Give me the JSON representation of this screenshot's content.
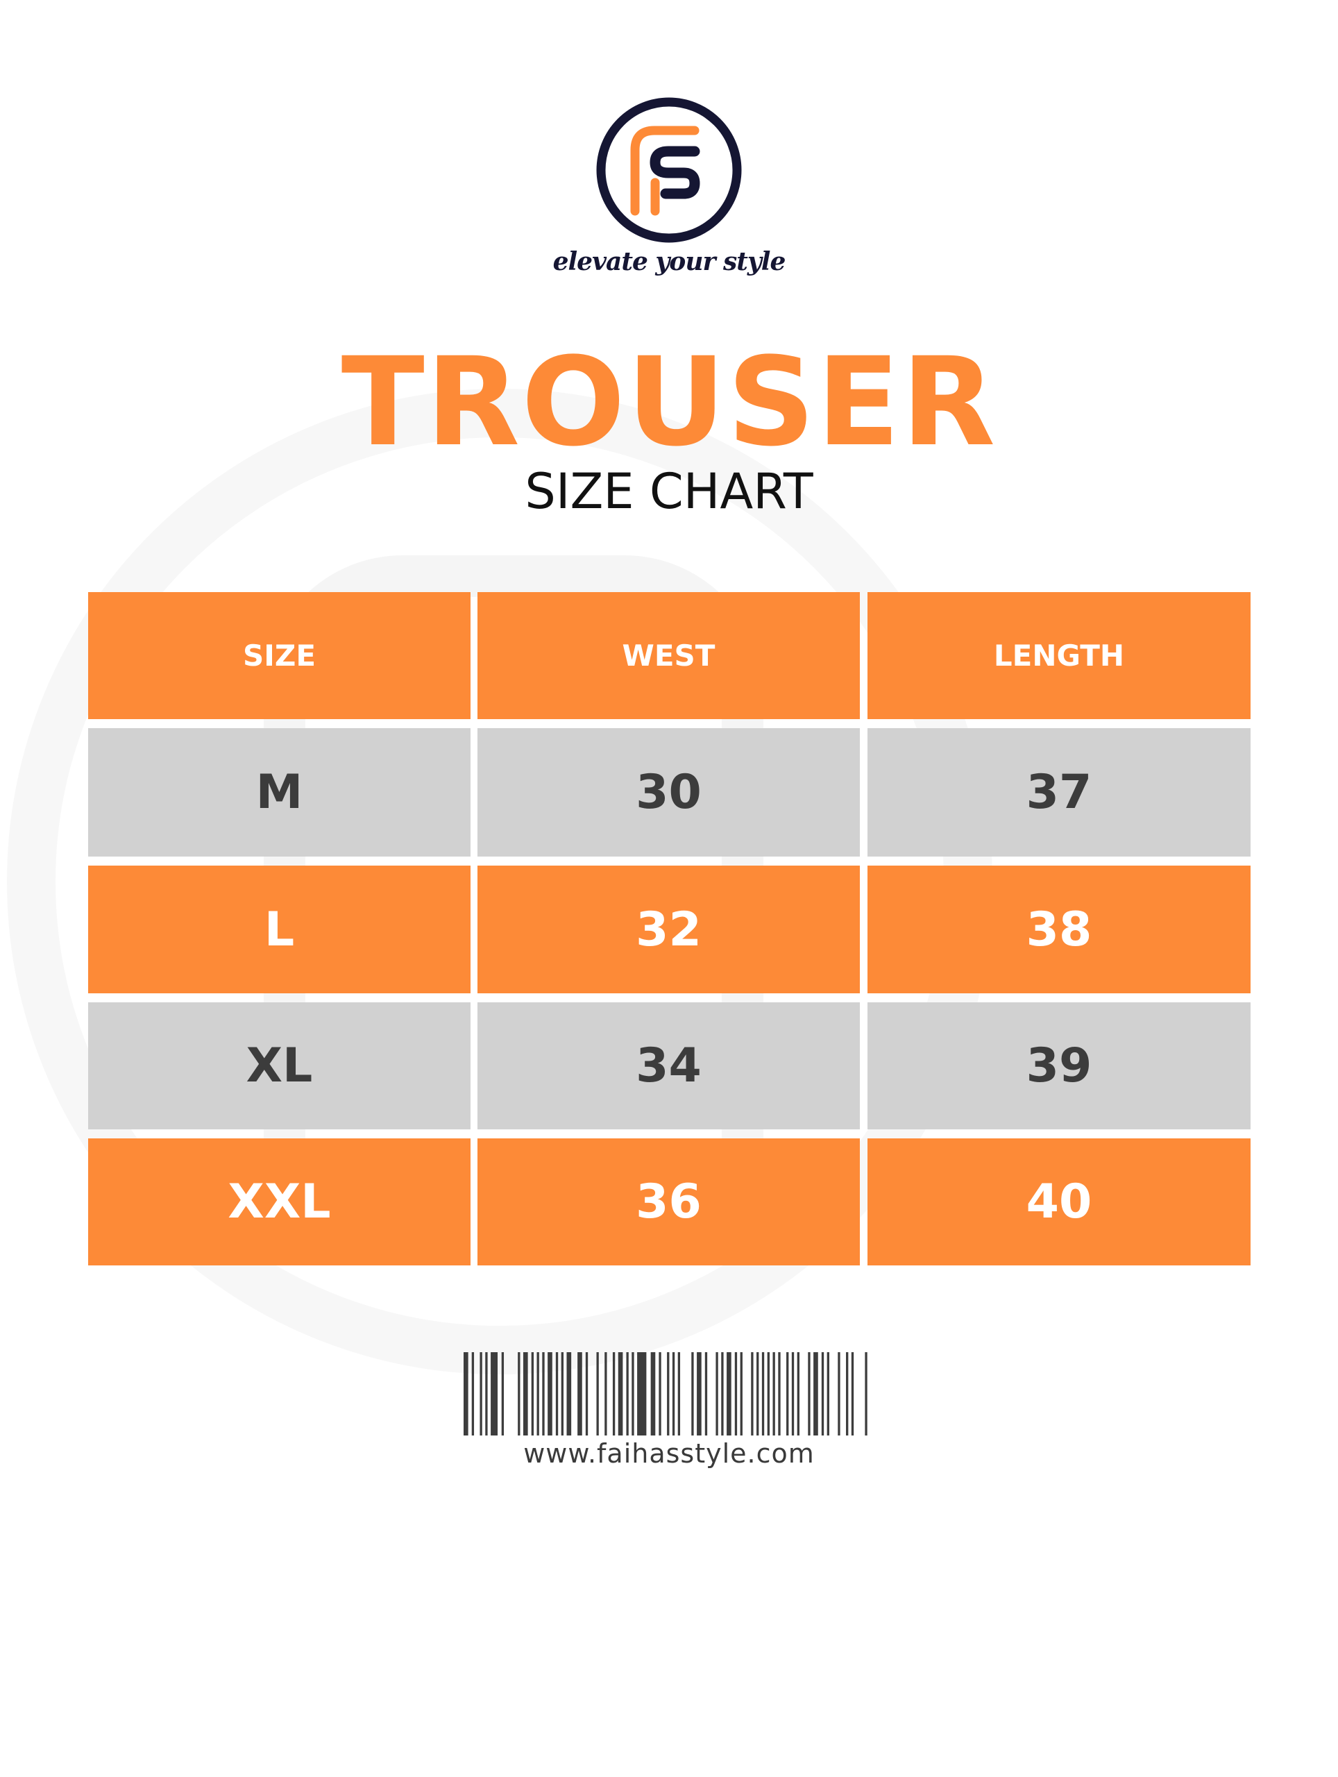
{
  "brand": {
    "logo_letters": "FS",
    "tagline": "elevate your style",
    "colors": {
      "orange": "#fd8a37",
      "navy": "#151633",
      "gray": "#d1d1d1"
    }
  },
  "title": "TROUSER",
  "subtitle": "SIZE CHART",
  "table": {
    "headers": [
      "SIZE",
      "WEST",
      "LENGTH"
    ],
    "rows": [
      [
        "M",
        "30",
        "37"
      ],
      [
        "L",
        "32",
        "38"
      ],
      [
        "XL",
        "34",
        "39"
      ],
      [
        "XXL",
        "36",
        "40"
      ]
    ]
  },
  "footer": {
    "barcode_icon": "barcode-icon",
    "url": "www.faihasstyle.com"
  }
}
